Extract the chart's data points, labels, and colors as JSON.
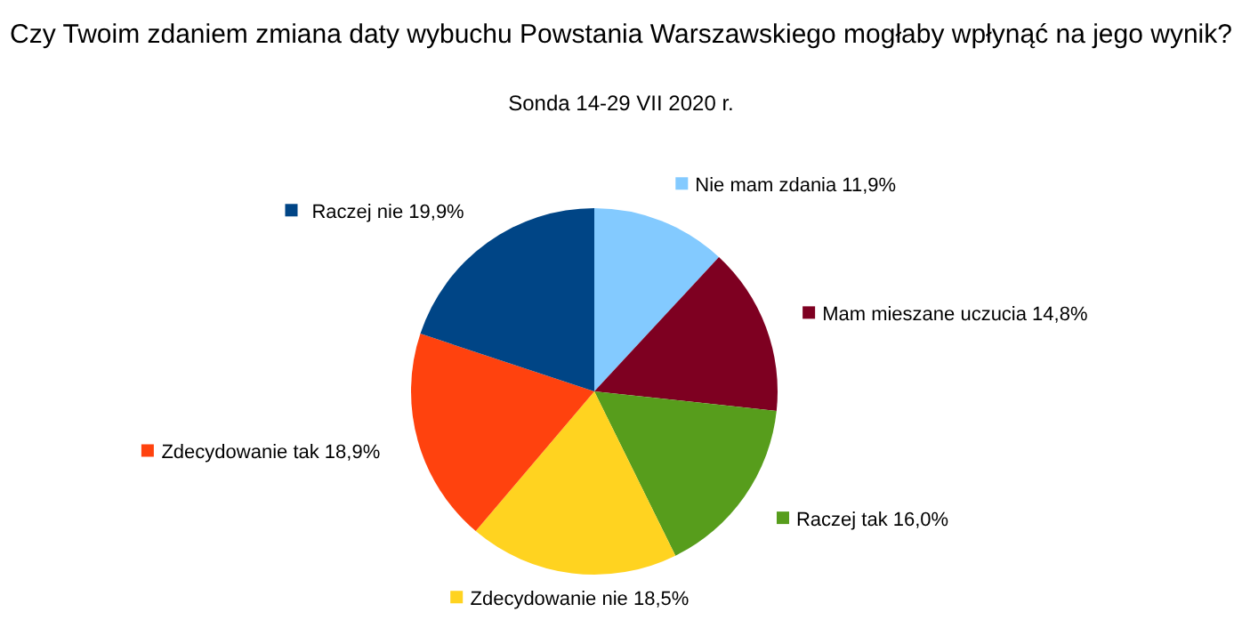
{
  "chart_data": {
    "type": "pie",
    "title": "Czy Twoim zdaniem zmiana daty wybuchu Powstania Warszawskiego mogłaby wpłynąć na jego wynik?",
    "subtitle": "Sonda 14-29 VII 2020 r.",
    "categories": [
      "Nie mam zdania",
      "Mam mieszane uczucia",
      "Raczej tak",
      "Zdecydowanie nie",
      "Zdecydowanie tak",
      "Raczej nie"
    ],
    "values": [
      11.9,
      14.8,
      16.0,
      18.5,
      18.9,
      19.9
    ],
    "value_labels": [
      "11,9%",
      "14,8%",
      "16,0%",
      "18,5%",
      "18,9%",
      "19,9%"
    ],
    "colors": [
      "#83caff",
      "#7e0021",
      "#579d1c",
      "#ffd320",
      "#ff420e",
      "#004586"
    ],
    "legend": "right"
  }
}
